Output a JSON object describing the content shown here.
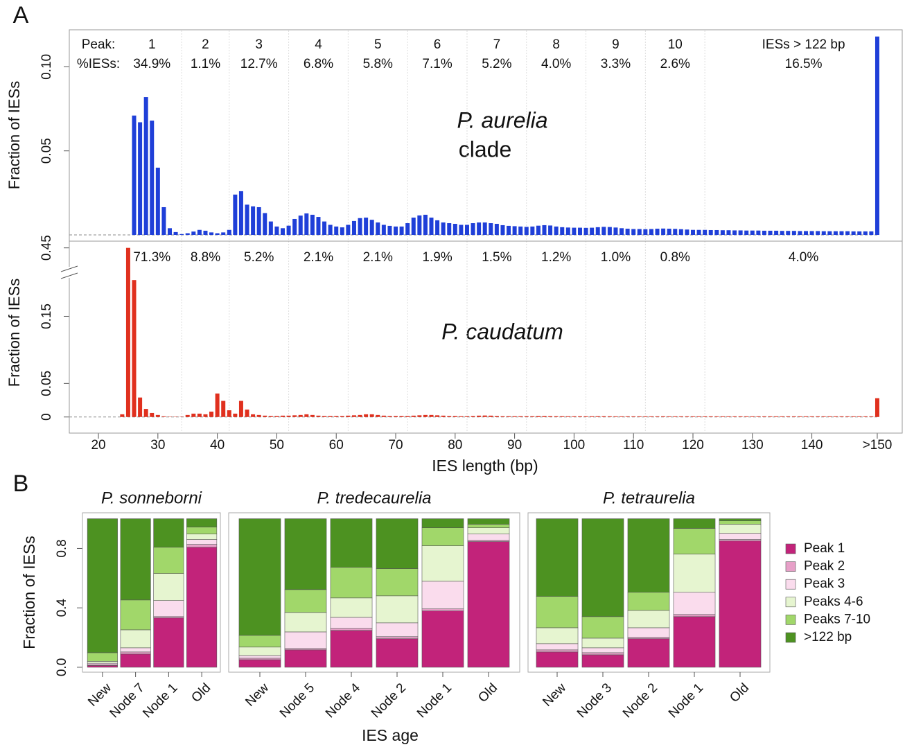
{
  "chart_data": [
    {
      "type": "bar",
      "panel_label": "A",
      "ylabel": "Fraction of IESs",
      "species": "P. aurelia",
      "species_note": "clade",
      "color": "#1f3fd8",
      "ylim": [
        -0.0037,
        0.122
      ],
      "yticks": [
        0.05,
        {
          "value": 0.1,
          "label": "0.10"
        }
      ],
      "peak_header": "Peak:",
      "percent_header": "%IESs:",
      "peaks": [
        "1",
        "2",
        "3",
        "4",
        "5",
        "6",
        "7",
        "8",
        "9",
        "10",
        "IESs > 122 bp"
      ],
      "peak_boundaries": [
        34,
        42,
        52,
        62,
        72,
        82,
        92,
        102,
        112,
        122
      ],
      "peak_percent": [
        34.9,
        1.1,
        12.7,
        6.8,
        5.8,
        7.1,
        5.2,
        4.0,
        3.3,
        2.6,
        16.5
      ],
      "peak_percent_labels": [
        "34.9%",
        "1.1%",
        "12.7%",
        "6.8%",
        "5.8%",
        "7.1%",
        "5.2%",
        "4.0%",
        "3.3%",
        "2.6%",
        "16.5%"
      ],
      "x": [
        26,
        27,
        28,
        29,
        30,
        31,
        32,
        33,
        34,
        35,
        36,
        37,
        38,
        39,
        40,
        41,
        42,
        43,
        44,
        45,
        46,
        47,
        48,
        49,
        50,
        51,
        52,
        53,
        54,
        55,
        56,
        57,
        58,
        59,
        60,
        61,
        62,
        63,
        64,
        65,
        66,
        67,
        68,
        69,
        70,
        71,
        72,
        73,
        74,
        75,
        76,
        77,
        78,
        79,
        80,
        81,
        82,
        83,
        84,
        85,
        86,
        87,
        88,
        89,
        90,
        91,
        92,
        93,
        94,
        95,
        96,
        97,
        98,
        99,
        100,
        101,
        102,
        103,
        104,
        105,
        106,
        107,
        108,
        109,
        110,
        111,
        112,
        113,
        114,
        115,
        116,
        117,
        118,
        119,
        120,
        121,
        122,
        123,
        124,
        125,
        126,
        127,
        128,
        129,
        130,
        131,
        132,
        133,
        134,
        135,
        136,
        137,
        138,
        139,
        140,
        141,
        142,
        143,
        144,
        145,
        146,
        147,
        148,
        149,
        150,
        151
      ],
      "values": [
        0.071,
        0.067,
        0.082,
        0.068,
        0.04,
        0.0165,
        0.004,
        0.0017,
        0.0005,
        0.001,
        0.002,
        0.003,
        0.0025,
        0.0015,
        0.001,
        0.0015,
        0.003,
        0.024,
        0.026,
        0.018,
        0.017,
        0.0165,
        0.013,
        0.008,
        0.005,
        0.004,
        0.0055,
        0.0095,
        0.0115,
        0.0128,
        0.012,
        0.0107,
        0.008,
        0.006,
        0.005,
        0.0045,
        0.006,
        0.0083,
        0.01,
        0.0103,
        0.009,
        0.0074,
        0.006,
        0.0054,
        0.005,
        0.005,
        0.007,
        0.0103,
        0.0116,
        0.012,
        0.0103,
        0.0087,
        0.0074,
        0.007,
        0.0066,
        0.006,
        0.006,
        0.007,
        0.0074,
        0.0074,
        0.007,
        0.0066,
        0.0058,
        0.0054,
        0.0052,
        0.005,
        0.0048,
        0.005,
        0.0055,
        0.0058,
        0.0056,
        0.005,
        0.0046,
        0.0044,
        0.0043,
        0.0043,
        0.0042,
        0.0043,
        0.0046,
        0.0048,
        0.0047,
        0.0044,
        0.004,
        0.0037,
        0.0035,
        0.0035,
        0.0034,
        0.0035,
        0.0037,
        0.0038,
        0.0037,
        0.0036,
        0.0034,
        0.0032,
        0.003,
        0.003,
        0.003,
        0.0029,
        0.0029,
        0.0028,
        0.0028,
        0.0027,
        0.0027,
        0.0026,
        0.0026,
        0.0026,
        0.0025,
        0.0025,
        0.0025,
        0.0024,
        0.0024,
        0.0024,
        0.0023,
        0.0023,
        0.0023,
        0.0023,
        0.0022,
        0.0022,
        0.0022,
        0.0022,
        0.0022,
        0.0021,
        0.0021,
        0.0021,
        0.0021,
        0.118
      ]
    },
    {
      "type": "bar",
      "ylabel": "Fraction of IESs",
      "xlabel": "IES length (bp)",
      "species": "P. caudatum",
      "color": "#e0301e",
      "xlim": [
        15.1,
        155.2
      ],
      "xticks": [
        20,
        30,
        40,
        50,
        60,
        70,
        80,
        90,
        100,
        110,
        120,
        130,
        140,
        {
          "value": 151,
          "label": ">150"
        }
      ],
      "ylim": [
        -0.024,
        0.46
      ],
      "ybreak": [
        0.21,
        0.44
      ],
      "yticks": [
        0,
        0.05,
        0.15,
        0.45
      ],
      "peak_percent": [
        71.3,
        8.8,
        5.2,
        2.1,
        2.1,
        1.9,
        1.5,
        1.2,
        1.0,
        0.8,
        4.0
      ],
      "peak_percent_labels": [
        "71.3%",
        "8.8%",
        "5.2%",
        "2.1%",
        "2.1%",
        "1.9%",
        "1.5%",
        "1.2%",
        "1.0%",
        "0.8%",
        "4.0%"
      ],
      "x": [
        24,
        25,
        26,
        27,
        28,
        29,
        30,
        31,
        32,
        33,
        34,
        35,
        36,
        37,
        38,
        39,
        40,
        41,
        42,
        43,
        44,
        45,
        46,
        47,
        48,
        49,
        50,
        51,
        52,
        53,
        54,
        55,
        56,
        57,
        58,
        59,
        60,
        61,
        62,
        63,
        64,
        65,
        66,
        67,
        68,
        69,
        70,
        71,
        72,
        73,
        74,
        75,
        76,
        77,
        78,
        79,
        80,
        81,
        82,
        83,
        84,
        85,
        86,
        87,
        88,
        89,
        90,
        91,
        92,
        93,
        94,
        95,
        96,
        97,
        98,
        99,
        100,
        101,
        102,
        103,
        104,
        105,
        106,
        107,
        108,
        109,
        110,
        111,
        112,
        113,
        114,
        115,
        116,
        117,
        118,
        119,
        120,
        121,
        122,
        123,
        124,
        125,
        126,
        127,
        128,
        129,
        130,
        131,
        132,
        133,
        134,
        135,
        136,
        137,
        138,
        139,
        140,
        141,
        142,
        143,
        144,
        145,
        146,
        147,
        148,
        149,
        150,
        151
      ],
      "values": [
        0.004,
        0.45,
        0.204,
        0.029,
        0.012,
        0.006,
        0.003,
        0.001,
        0.0005,
        0.0005,
        0.0005,
        0.003,
        0.005,
        0.005,
        0.004,
        0.008,
        0.035,
        0.024,
        0.01,
        0.005,
        0.024,
        0.011,
        0.004,
        0.003,
        0.002,
        0.0015,
        0.0015,
        0.002,
        0.002,
        0.0025,
        0.003,
        0.004,
        0.003,
        0.002,
        0.0015,
        0.0015,
        0.0015,
        0.0015,
        0.002,
        0.0025,
        0.003,
        0.004,
        0.004,
        0.003,
        0.002,
        0.0015,
        0.0015,
        0.0015,
        0.0015,
        0.002,
        0.0025,
        0.003,
        0.003,
        0.0025,
        0.002,
        0.0015,
        0.0015,
        0.0012,
        0.0012,
        0.0015,
        0.002,
        0.0022,
        0.002,
        0.0015,
        0.0012,
        0.0012,
        0.0012,
        0.0012,
        0.0012,
        0.0012,
        0.0015,
        0.0015,
        0.0013,
        0.0012,
        0.0012,
        0.0011,
        0.0011,
        0.0011,
        0.0011,
        0.0011,
        0.0012,
        0.0012,
        0.0011,
        0.001,
        0.001,
        0.001,
        0.001,
        0.001,
        0.001,
        0.001,
        0.001,
        0.0011,
        0.001,
        0.001,
        0.001,
        0.001,
        0.001,
        0.001,
        0.001,
        0.001,
        0.001,
        0.001,
        0.001,
        0.001,
        0.001,
        0.001,
        0.001,
        0.001,
        0.001,
        0.001,
        0.001,
        0.001,
        0.001,
        0.001,
        0.001,
        0.001,
        0.001,
        0.001,
        0.001,
        0.001,
        0.001,
        0.001,
        0.001,
        0.001,
        0.001,
        0.001,
        0.001,
        0.028
      ]
    },
    {
      "type": "stacked_bar",
      "panel_label": "B",
      "ylabel": "Fraction of IESs",
      "xlabel": "IES age",
      "ylim": [
        -0.033,
        1.04
      ],
      "yticks": [
        {
          "value": 0,
          "label": "0.0"
        },
        0.4,
        0.8
      ],
      "series": [
        {
          "name": "Peak 1",
          "color": "#c2237a"
        },
        {
          "name": "Peak 2",
          "color": "#e7a0c8"
        },
        {
          "name": "Peak 3",
          "color": "#fadced"
        },
        {
          "name": "Peaks 4-6",
          "color": "#e6f5d0"
        },
        {
          "name": "Peaks 7-10",
          "color": "#a1d76a"
        },
        {
          "name": ">122 bp",
          "color": "#4d9221"
        }
      ],
      "groups": [
        {
          "title": "P. sonneborni",
          "categories": [
            "New",
            "Node 7",
            "Node 1",
            "Old"
          ],
          "values": [
            [
              0.012,
              0.089,
              0.332,
              0.808
            ],
            [
              0.005,
              0.014,
              0.009,
              0.019
            ],
            [
              0.01,
              0.028,
              0.108,
              0.033
            ],
            [
              0.013,
              0.121,
              0.182,
              0.037
            ],
            [
              0.058,
              0.201,
              0.177,
              0.047
            ],
            [
              0.902,
              0.547,
              0.192,
              0.056
            ]
          ]
        },
        {
          "title": "P. tredecaurelia",
          "categories": [
            "New",
            "Node 5",
            "Node 4",
            "Node 2",
            "Node 1",
            "Old"
          ],
          "values": [
            [
              0.051,
              0.117,
              0.248,
              0.192,
              0.379,
              0.846
            ],
            [
              0.01,
              0.009,
              0.014,
              0.014,
              0.014,
              0.009
            ],
            [
              0.018,
              0.112,
              0.074,
              0.093,
              0.186,
              0.042
            ],
            [
              0.057,
              0.131,
              0.131,
              0.182,
              0.239,
              0.042
            ],
            [
              0.079,
              0.154,
              0.206,
              0.183,
              0.121,
              0.024
            ],
            [
              0.785,
              0.477,
              0.327,
              0.336,
              0.061,
              0.037
            ]
          ]
        },
        {
          "title": "P. tetraurelia",
          "categories": [
            "New",
            "Node 3",
            "Node 2",
            "Node 1",
            "Old"
          ],
          "values": [
            [
              0.103,
              0.084,
              0.192,
              0.341,
              0.85
            ],
            [
              0.014,
              0.014,
              0.009,
              0.014,
              0.01
            ],
            [
              0.042,
              0.033,
              0.065,
              0.15,
              0.042
            ],
            [
              0.107,
              0.065,
              0.117,
              0.257,
              0.061
            ],
            [
              0.211,
              0.145,
              0.122,
              0.173,
              0.023
            ],
            [
              0.523,
              0.659,
              0.495,
              0.065,
              0.014
            ]
          ]
        }
      ]
    }
  ]
}
